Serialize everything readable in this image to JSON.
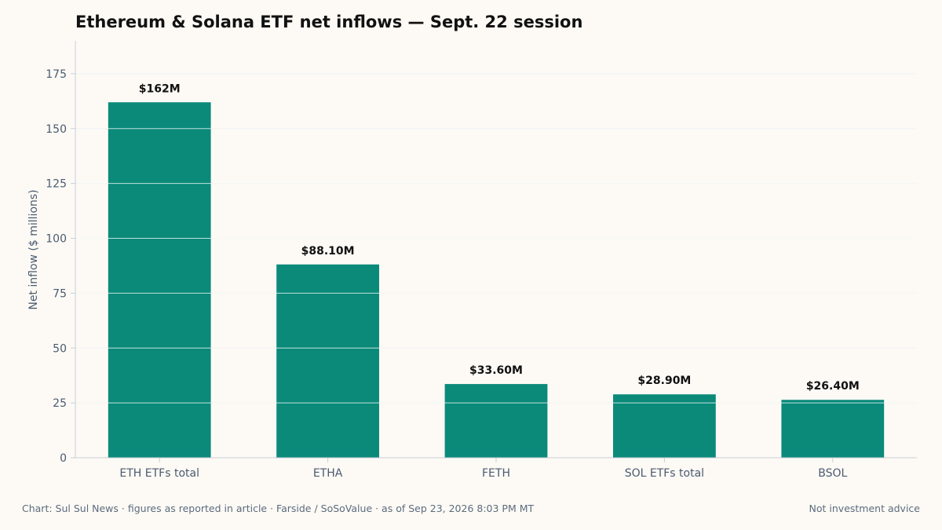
{
  "chart_data": {
    "type": "bar",
    "title": "Ethereum & Solana ETF net inflows — Sept. 22 session",
    "xlabel": "",
    "ylabel": "Net inflow ($ millions)",
    "categories": [
      "ETH ETFs total",
      "ETHA",
      "FETH",
      "SOL ETFs total",
      "BSOL"
    ],
    "values": [
      162,
      88.1,
      33.6,
      28.9,
      26.4
    ],
    "data_labels": [
      "$162M",
      "$88.10M",
      "$33.60M",
      "$28.90M",
      "$26.40M"
    ],
    "y_ticks": [
      0,
      25,
      50,
      75,
      100,
      125,
      150,
      175
    ],
    "ylim": [
      0,
      190
    ],
    "grid": "horizontal",
    "legend": "none",
    "colors": {
      "bar": "#0b8a7a",
      "grid": "#d9dee2",
      "axis": "#c9cfd6",
      "tick_text": "#4a5a70",
      "label_text": "#111111",
      "background": "#fdfaf5"
    }
  },
  "footer": {
    "source": "Chart: Sul Sul News · figures as reported in article · Farside / SoSoValue · as of Sep 23, 2026 8:03 PM MT",
    "disclaimer": "Not investment advice"
  }
}
